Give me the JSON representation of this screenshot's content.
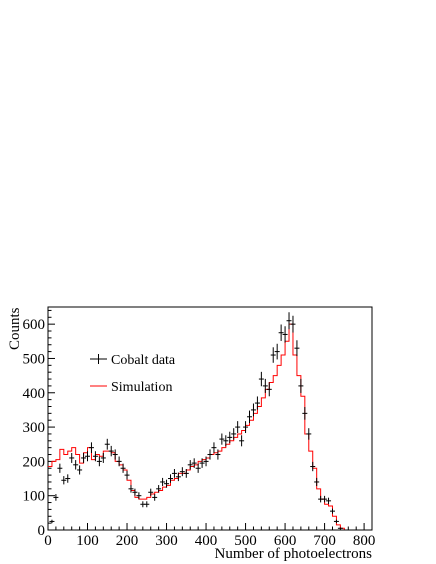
{
  "chart_data": {
    "type": "line",
    "xlabel": "Number of photoelectrons",
    "ylabel": "Counts",
    "xlim": [
      0,
      820
    ],
    "ylim": [
      0,
      650
    ],
    "x_ticks": [
      0,
      100,
      200,
      300,
      400,
      500,
      600,
      700,
      800
    ],
    "y_ticks": [
      0,
      100,
      200,
      300,
      400,
      500,
      600
    ],
    "grid": false,
    "legend_position": "center-left",
    "series": [
      {
        "name": "Cobalt data",
        "style": "points-with-error-bars",
        "color": "#000000",
        "x": [
          10,
          20,
          30,
          40,
          50,
          60,
          70,
          80,
          90,
          100,
          110,
          120,
          130,
          140,
          150,
          160,
          170,
          180,
          190,
          200,
          210,
          220,
          230,
          240,
          250,
          260,
          270,
          280,
          290,
          300,
          310,
          320,
          330,
          340,
          350,
          360,
          370,
          380,
          390,
          400,
          410,
          420,
          430,
          440,
          450,
          460,
          470,
          480,
          490,
          500,
          510,
          520,
          530,
          540,
          550,
          560,
          570,
          580,
          590,
          600,
          610,
          620,
          630,
          640,
          650,
          660,
          670,
          680,
          690,
          700,
          710,
          720,
          730,
          740,
          750,
          760
        ],
        "y": [
          25,
          95,
          180,
          145,
          150,
          210,
          190,
          175,
          210,
          215,
          240,
          215,
          200,
          210,
          250,
          230,
          220,
          200,
          180,
          160,
          120,
          110,
          100,
          75,
          75,
          110,
          95,
          120,
          140,
          135,
          150,
          165,
          155,
          170,
          165,
          190,
          195,
          180,
          195,
          200,
          220,
          240,
          220,
          265,
          260,
          270,
          280,
          300,
          260,
          300,
          330,
          350,
          370,
          440,
          420,
          410,
          510,
          520,
          575,
          570,
          610,
          600,
          530,
          420,
          340,
          280,
          185,
          140,
          90,
          90,
          85,
          55,
          25,
          5,
          0,
          0
        ]
      },
      {
        "name": "Simulation",
        "style": "step",
        "color": "#ff0000",
        "x": [
          0,
          10,
          20,
          30,
          40,
          50,
          60,
          70,
          80,
          90,
          100,
          110,
          120,
          130,
          140,
          150,
          160,
          170,
          180,
          190,
          200,
          210,
          220,
          230,
          240,
          250,
          260,
          270,
          280,
          290,
          300,
          310,
          320,
          330,
          340,
          350,
          360,
          370,
          380,
          390,
          400,
          410,
          420,
          430,
          440,
          450,
          460,
          470,
          480,
          490,
          500,
          510,
          520,
          530,
          540,
          550,
          560,
          570,
          580,
          590,
          600,
          610,
          620,
          630,
          640,
          650,
          660,
          670,
          680,
          690,
          700,
          710,
          720,
          730,
          740,
          750
        ],
        "y": [
          185,
          200,
          205,
          235,
          220,
          230,
          240,
          220,
          195,
          225,
          240,
          205,
          220,
          215,
          230,
          230,
          225,
          200,
          190,
          175,
          145,
          115,
          95,
          90,
          90,
          95,
          105,
          110,
          115,
          125,
          130,
          145,
          150,
          165,
          165,
          175,
          185,
          190,
          200,
          205,
          210,
          220,
          225,
          230,
          240,
          250,
          260,
          270,
          280,
          290,
          305,
          320,
          340,
          360,
          385,
          410,
          430,
          450,
          480,
          510,
          550,
          600,
          510,
          450,
          390,
          280,
          230,
          180,
          120,
          90,
          75,
          70,
          40,
          15,
          5,
          0
        ]
      }
    ]
  }
}
